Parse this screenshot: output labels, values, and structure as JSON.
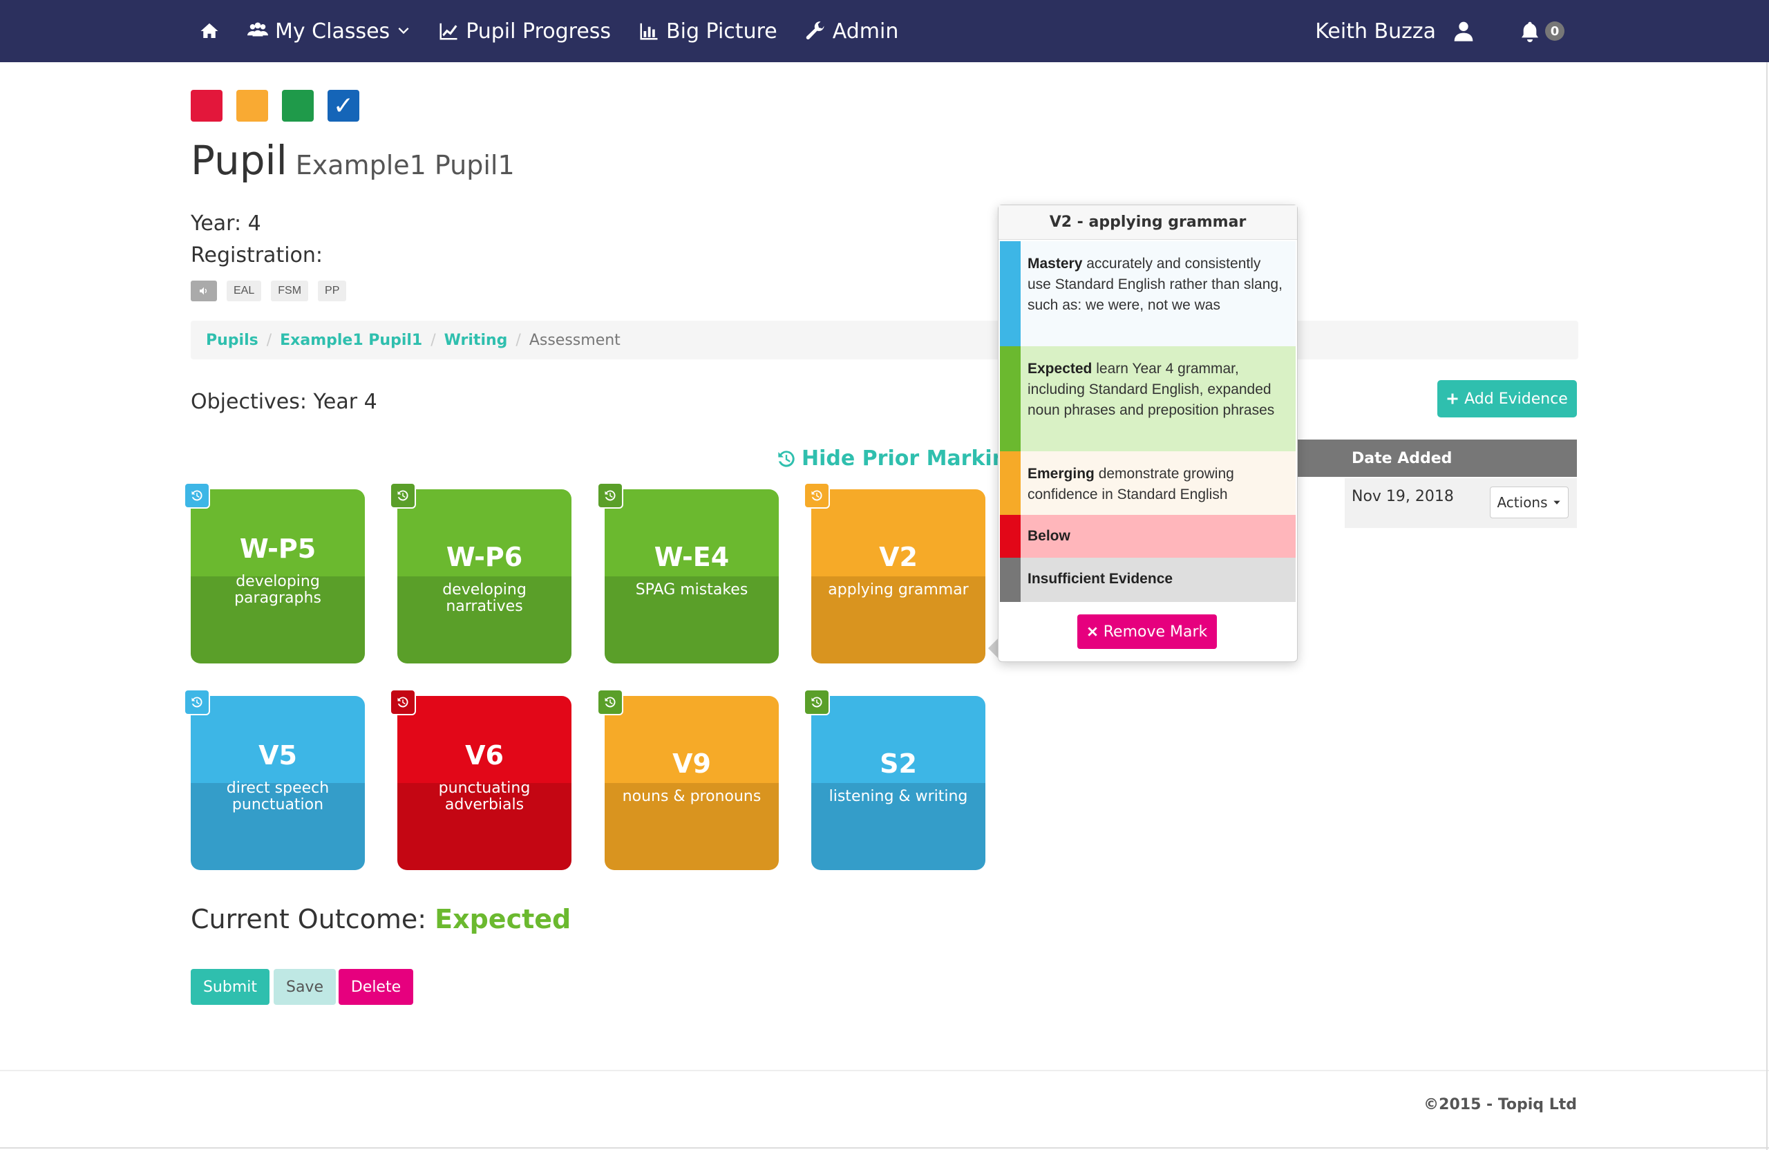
{
  "nav": {
    "items": [
      {
        "label": "",
        "icon": "home-icon"
      },
      {
        "label": "My Classes",
        "icon": "users-icon"
      },
      {
        "label": "Pupil Progress",
        "icon": "line-chart-icon"
      },
      {
        "label": "Big Picture",
        "icon": "bar-chart-icon"
      },
      {
        "label": "Admin",
        "icon": "wrench-icon"
      }
    ],
    "user_name": "Keith Buzza",
    "notification_count": "0"
  },
  "filters": {
    "colors": [
      "#e3173b",
      "#f9aa33",
      "#1f9a4a",
      "#1565b8"
    ],
    "check_glyph": "✓"
  },
  "page": {
    "title": "Pupil",
    "subtitle": "Example1 Pupil1",
    "year_line": "Year: 4",
    "registration_label": "Registration:",
    "tags": [
      "EAL",
      "FSM",
      "PP"
    ]
  },
  "breadcrumb": {
    "items": [
      "Pupils",
      "Example1 Pupil1",
      "Writing"
    ],
    "current": "Assessment",
    "separator": "/"
  },
  "objectives_label": "Objectives: Year 4",
  "add_evidence_label": "Add Evidence",
  "hide_prior_label": "Hide Prior Marking",
  "evidence_table": {
    "header": "Date Added",
    "rows": [
      {
        "date": "Nov 19, 2018",
        "actions_label": "Actions"
      }
    ]
  },
  "tiles": [
    {
      "code": "W-P5",
      "desc_lines": [
        "developing",
        "paragraphs"
      ],
      "color": "green",
      "badge": "#3db6e6"
    },
    {
      "code": "W-P6",
      "desc_lines": [
        "developing narratives"
      ],
      "color": "green",
      "badge": "#5a9f29"
    },
    {
      "code": "W-E4",
      "desc_lines": [
        "SPAG mistakes"
      ],
      "color": "green",
      "badge": "#5a9f29"
    },
    {
      "code": "V2",
      "desc_lines": [
        "applying grammar"
      ],
      "color": "orange",
      "badge": "#f6aa28"
    },
    {
      "code": "V5",
      "desc_lines": [
        "direct speech",
        "punctuation"
      ],
      "color": "blue",
      "badge": "#3db6e6"
    },
    {
      "code": "V6",
      "desc_lines": [
        "punctuating",
        "adverbials"
      ],
      "color": "red",
      "badge": "#c40613"
    },
    {
      "code": "V9",
      "desc_lines": [
        "nouns & pronouns"
      ],
      "color": "orange",
      "badge": "#5a9f29"
    },
    {
      "code": "S2",
      "desc_lines": [
        "listening & writing"
      ],
      "color": "blue",
      "badge": "#5a9f29"
    }
  ],
  "outcome": {
    "label": "Current Outcome:",
    "value": "Expected"
  },
  "buttons": {
    "submit": "Submit",
    "save": "Save",
    "delete": "Delete"
  },
  "popover": {
    "title": "V2 - applying grammar",
    "levels": [
      {
        "name": "Mastery",
        "text": "accurately and consistently use Standard English rather than slang, such as: we were, not we was",
        "bar": "#3db6e6",
        "bg": "#f5fafd"
      },
      {
        "name": "Expected",
        "text": "learn Year 4 grammar, including Standard English, expanded noun phrases and preposition phrases",
        "bar": "#6bb92f",
        "bg": "#d9f1c5"
      },
      {
        "name": "Emerging",
        "text": "demonstrate growing confidence in Standard English",
        "bar": "#f6aa28",
        "bg": "#fdf6ec"
      },
      {
        "name": "Below",
        "text": "",
        "bar": "#e20718",
        "bg": "#ffb6bb"
      },
      {
        "name": "Insufficient Evidence",
        "text": "",
        "bar": "#777777",
        "bg": "#dedede"
      }
    ],
    "remove_label": "Remove Mark"
  },
  "footer": {
    "copyright": "©2015 - Topiq Ltd"
  }
}
